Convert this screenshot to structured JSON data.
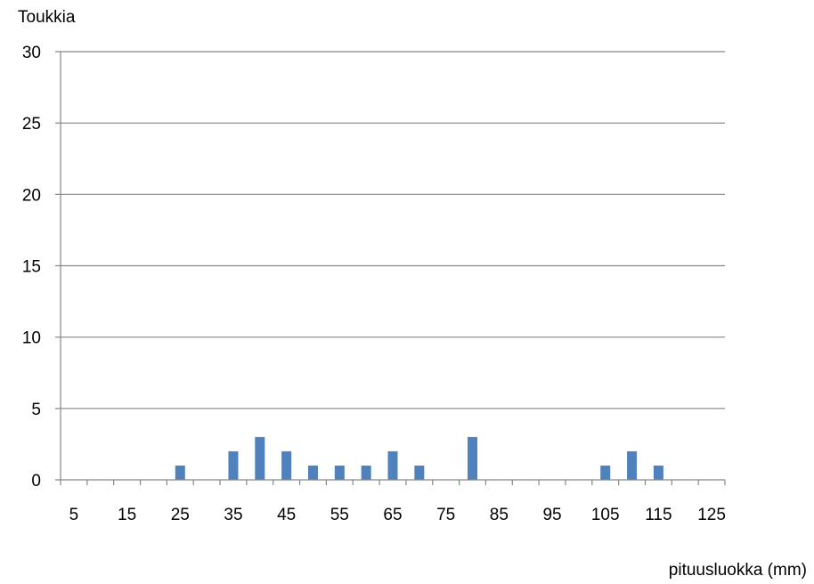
{
  "colors": {
    "bar": "#4f81bd",
    "grid": "#868686",
    "axis": "#868686",
    "text": "#000000",
    "background": "#ffffff"
  },
  "chart_data": {
    "type": "bar",
    "title": "",
    "ylabel": "Toukkia",
    "xlabel": "pituusluokka (mm)",
    "ylim": [
      0,
      30
    ],
    "y_ticks": [
      0,
      5,
      10,
      15,
      20,
      25,
      30
    ],
    "categories": [
      5,
      10,
      15,
      20,
      25,
      30,
      35,
      40,
      45,
      50,
      55,
      60,
      65,
      70,
      75,
      80,
      85,
      90,
      95,
      100,
      105,
      110,
      115,
      120,
      125
    ],
    "x_tick_labels": [
      "5",
      "15",
      "25",
      "35",
      "45",
      "55",
      "65",
      "75",
      "85",
      "95",
      "105",
      "115",
      "125"
    ],
    "values": [
      0,
      0,
      0,
      0,
      1,
      0,
      2,
      3,
      2,
      1,
      1,
      1,
      2,
      1,
      0,
      3,
      0,
      0,
      0,
      0,
      1,
      2,
      1,
      0,
      0
    ],
    "grid": true,
    "legend": "none"
  }
}
